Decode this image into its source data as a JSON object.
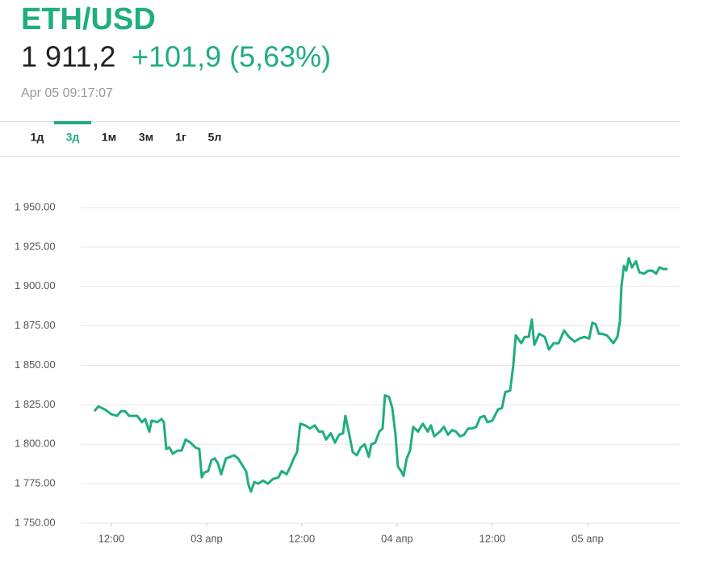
{
  "header": {
    "title": "ETH/USD",
    "price": "1 911,2",
    "change": "+101,9 (5,63%)",
    "timestamp": "Apr 05 09:17:07"
  },
  "tabs": {
    "items": [
      "1д",
      "3д",
      "1м",
      "3м",
      "1г",
      "5л"
    ],
    "active": 1
  },
  "chart_data": {
    "type": "line",
    "color": "#1fae7c",
    "grid": true,
    "x": [
      9.86,
      10.37,
      11.19,
      12,
      12.71,
      13.22,
      13.73,
      14.24,
      15.25,
      15.86,
      16.27,
      16.78,
      17.08,
      17.8,
      18.31,
      18.61,
      18.92,
      19.32,
      19.73,
      20.34,
      20.85,
      21.36,
      21.97,
      22.58,
      23.08,
      23.39,
      23.69,
      24.2,
      24.61,
      25.02,
      25.42,
      25.83,
      26.44,
      26.95,
      27.46,
      27.97,
      28.47,
      28.98,
      29.29,
      29.59,
      30.0,
      30.51,
      31.12,
      31.73,
      32.34,
      33.05,
      33.46,
      34.07,
      34.58,
      34.98,
      35.39,
      35.8,
      36.41,
      37.02,
      37.63,
      38.14,
      38.64,
      39.05,
      39.66,
      40.17,
      40.68,
      41.19,
      41.49,
      41.9,
      42.41,
      42.92,
      43.42,
      43.93,
      44.44,
      44.75,
      45.25,
      45.76,
      46.17,
      46.47,
      46.98,
      47.39,
      47.8,
      48.1,
      48.51,
      48.81,
      49.22,
      49.63,
      50.03,
      50.64,
      51.25,
      51.86,
      52.27,
      52.68,
      53.39,
      53.9,
      54.41,
      54.92,
      55.42,
      55.93,
      56.44,
      56.95,
      57.46,
      57.97,
      58.47,
      58.98,
      59.39,
      60.0,
      60.71,
      61.22,
      61.63,
      62.24,
      62.64,
      62.95,
      63.36,
      63.66,
      64.07,
      64.58,
      64.98,
      65.29,
      65.9,
      66.61,
      67.12,
      67.73,
      68.34,
      69.05,
      69.66,
      70.37,
      70.98,
      71.59,
      72.2,
      72.61,
      73.02,
      73.42,
      73.83,
      74.44,
      74.95,
      75.25,
      75.76,
      76.07,
      76.27,
      76.58,
      76.88,
      77.19,
      77.59,
      78.1,
      78.51,
      79.12,
      79.63,
      80.14,
      80.64,
      81.05,
      81.56,
      82.07
    ],
    "values": [
      1821,
      1824,
      1822,
      1819,
      1818,
      1821,
      1821,
      1818,
      1818,
      1814,
      1816,
      1808,
      1815,
      1814,
      1816,
      1814,
      1797,
      1798,
      1794,
      1796,
      1796,
      1803,
      1801,
      1798,
      1797,
      1779,
      1782,
      1783,
      1790,
      1791,
      1788,
      1781,
      1791,
      1792,
      1793,
      1791,
      1787,
      1783,
      1774,
      1770,
      1776,
      1775,
      1777,
      1775,
      1778,
      1779,
      1783,
      1781,
      1786,
      1791,
      1795,
      1813,
      1812,
      1810,
      1812,
      1808,
      1808,
      1803,
      1807,
      1801,
      1806,
      1807,
      1818,
      1808,
      1795,
      1793,
      1798,
      1800,
      1792,
      1800,
      1801,
      1808,
      1810,
      1831,
      1830,
      1823,
      1806,
      1786,
      1783,
      1780,
      1791,
      1796,
      1811,
      1808,
      1813,
      1808,
      1812,
      1805,
      1808,
      1811,
      1806,
      1809,
      1808,
      1805,
      1806,
      1810,
      1810,
      1811,
      1817,
      1818,
      1814,
      1815,
      1822,
      1823,
      1833,
      1834,
      1850,
      1869,
      1866,
      1864,
      1868,
      1868,
      1879,
      1863,
      1870,
      1868,
      1860,
      1864,
      1864,
      1872,
      1868,
      1865,
      1867,
      1868,
      1867,
      1877,
      1876,
      1870,
      1870,
      1869,
      1866,
      1864,
      1868,
      1878,
      1900,
      1913,
      1910,
      1918,
      1912,
      1916,
      1909,
      1908,
      1910,
      1910,
      1908,
      1912,
      1911,
      1911
    ],
    "xlim": [
      8.14,
      83.7
    ],
    "xticks": [
      {
        "value": 12,
        "label": "12:00"
      },
      {
        "value": 24,
        "label": "03 апр"
      },
      {
        "value": 36,
        "label": "12:00"
      },
      {
        "value": 48,
        "label": "04 апр"
      },
      {
        "value": 60,
        "label": "12:00"
      },
      {
        "value": 72,
        "label": "05 апр"
      }
    ],
    "ylim": [
      1750,
      1950
    ],
    "yticks": [
      {
        "value": 1750,
        "label": "1 750.00"
      },
      {
        "value": 1775,
        "label": "1 775.00"
      },
      {
        "value": 1800,
        "label": "1 800.00"
      },
      {
        "value": 1825,
        "label": "1 825.00"
      },
      {
        "value": 1850,
        "label": "1 850.00"
      },
      {
        "value": 1875,
        "label": "1 875.00"
      },
      {
        "value": 1900,
        "label": "1 900.00"
      },
      {
        "value": 1925,
        "label": "1 925.00"
      },
      {
        "value": 1950,
        "label": "1 950.00"
      }
    ]
  }
}
